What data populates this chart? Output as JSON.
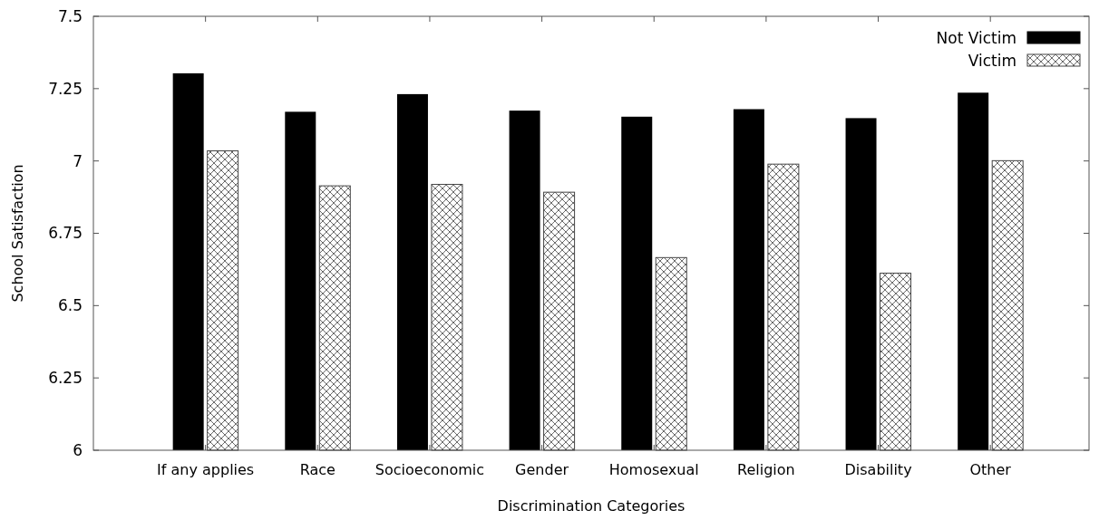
{
  "chart_data": {
    "type": "bar",
    "xlabel": "Discrimination Categories",
    "ylabel": "School Satisfaction",
    "categories": [
      "If any applies",
      "Race",
      "Socioeconomic",
      "Gender",
      "Homosexual",
      "Religion",
      "Disability",
      "Other"
    ],
    "series": [
      {
        "name": "Not Victim",
        "color": "#000000",
        "values": [
          7.303,
          7.17,
          7.231,
          7.174,
          7.153,
          7.179,
          7.148,
          7.236
        ]
      },
      {
        "name": "Victim",
        "color": "#444444",
        "values": [
          7.035,
          6.914,
          6.919,
          6.892,
          6.666,
          6.989,
          6.612,
          7.001
        ]
      }
    ],
    "ylim": [
      6,
      7.5
    ],
    "yticks": [
      6,
      6.25,
      6.5,
      6.75,
      7,
      7.25,
      7.5
    ],
    "legend": "top right",
    "grid": false
  }
}
